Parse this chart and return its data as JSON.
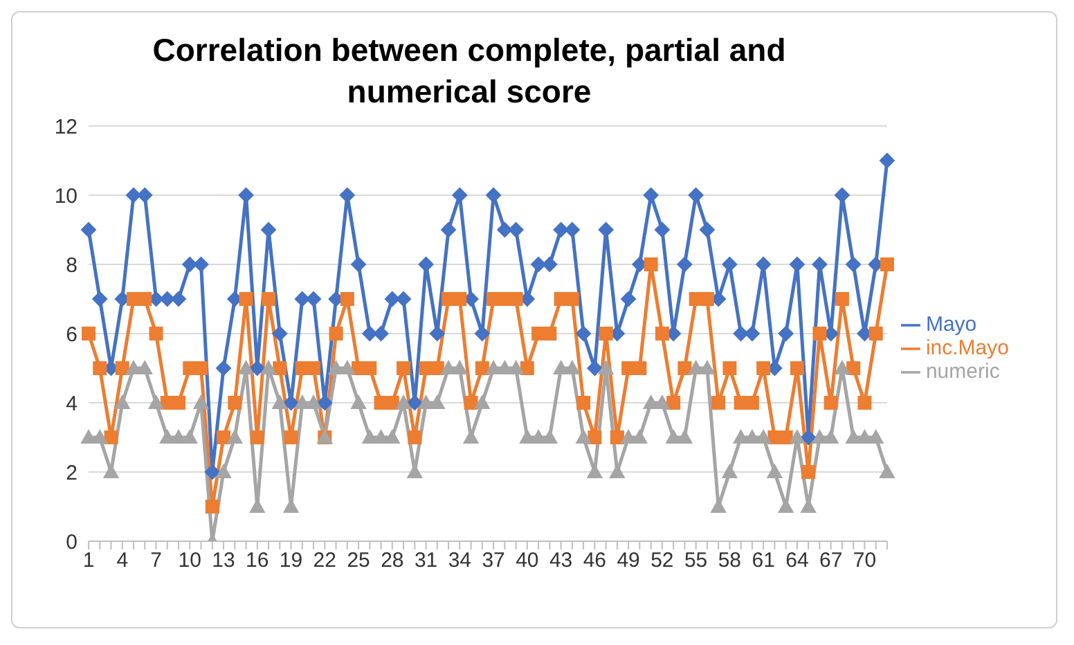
{
  "chart_data": {
    "type": "line",
    "title": "Correlation between complete, partial and numerical score",
    "categories": [
      "1",
      null,
      null,
      "4",
      null,
      null,
      "7",
      null,
      null,
      "10",
      null,
      null,
      "13",
      null,
      null,
      "16",
      null,
      null,
      "19",
      null,
      null,
      "22",
      null,
      null,
      "25",
      null,
      null,
      "28",
      null,
      null,
      "31",
      null,
      null,
      "34",
      null,
      null,
      "37",
      null,
      null,
      "40",
      null,
      null,
      "43",
      null,
      null,
      "46",
      null,
      null,
      "49",
      null,
      null,
      "52",
      null,
      null,
      "55",
      null,
      null,
      "58",
      null,
      null,
      "61",
      null,
      null,
      "64",
      null,
      null,
      "67",
      null,
      null,
      "70",
      null,
      null
    ],
    "series": [
      {
        "name": "Mayo",
        "color": "#4472c4",
        "marker": "diamond",
        "values": [
          9,
          7,
          5,
          7,
          10,
          10,
          7,
          7,
          7,
          8,
          8,
          2,
          5,
          7,
          10,
          5,
          9,
          6,
          4,
          7,
          7,
          4,
          7,
          10,
          8,
          6,
          6,
          7,
          7,
          4,
          8,
          6,
          9,
          10,
          7,
          6,
          10,
          9,
          9,
          7,
          8,
          8,
          9,
          9,
          6,
          5,
          9,
          6,
          7,
          8,
          10,
          9,
          6,
          8,
          10,
          9,
          7,
          8,
          6,
          6,
          8,
          5,
          6,
          8,
          3,
          8,
          6,
          10,
          8,
          6,
          8,
          11
        ]
      },
      {
        "name": "inc.Mayo",
        "color": "#ed7d31",
        "marker": "square",
        "values": [
          6,
          5,
          3,
          5,
          7,
          7,
          6,
          4,
          4,
          5,
          5,
          1,
          3,
          4,
          7,
          3,
          7,
          5,
          3,
          5,
          5,
          3,
          6,
          7,
          5,
          5,
          4,
          4,
          5,
          3,
          5,
          5,
          7,
          7,
          4,
          5,
          7,
          7,
          7,
          5,
          6,
          6,
          7,
          7,
          4,
          3,
          6,
          3,
          5,
          5,
          8,
          6,
          4,
          5,
          7,
          7,
          4,
          5,
          4,
          4,
          5,
          3,
          3,
          5,
          2,
          6,
          4,
          7,
          5,
          4,
          6,
          8
        ]
      },
      {
        "name": "numeric",
        "color": "#a5a5a5",
        "marker": "triangle",
        "values": [
          3,
          3,
          2,
          4,
          5,
          5,
          4,
          3,
          3,
          3,
          4,
          0,
          2,
          3,
          5,
          1,
          5,
          4,
          1,
          4,
          4,
          3,
          5,
          5,
          4,
          3,
          3,
          3,
          4,
          2,
          4,
          4,
          5,
          5,
          3,
          4,
          5,
          5,
          5,
          3,
          3,
          3,
          5,
          5,
          3,
          2,
          5,
          2,
          3,
          3,
          4,
          4,
          3,
          3,
          5,
          5,
          1,
          2,
          3,
          3,
          3,
          2,
          1,
          3,
          1,
          3,
          3,
          5,
          3,
          3,
          3,
          2
        ]
      }
    ],
    "ylim": [
      0,
      12
    ],
    "yticks": [
      0,
      2,
      4,
      6,
      8,
      10,
      12
    ],
    "grid": "y",
    "legend": "right"
  }
}
